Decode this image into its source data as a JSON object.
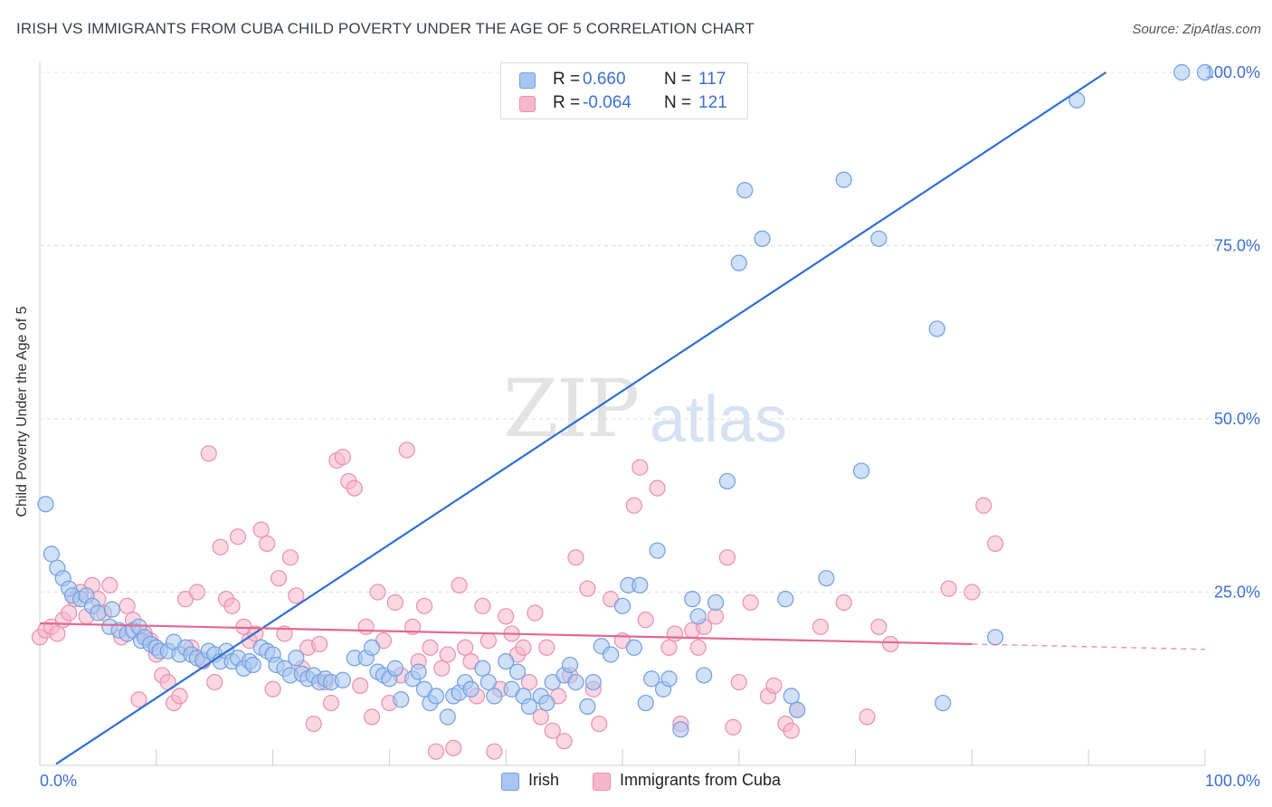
{
  "title": "IRISH VS IMMIGRANTS FROM CUBA CHILD POVERTY UNDER THE AGE OF 5 CORRELATION CHART",
  "source": "Source: ZipAtlas.com",
  "watermark": {
    "zip": "ZIP",
    "atlas": "atlas"
  },
  "legend": {
    "irish": {
      "r_label": "R =",
      "r_value": "0.660",
      "n_label": "N =",
      "n_value": "117"
    },
    "cuba": {
      "r_label": "R =",
      "r_value": "-0.064",
      "n_label": "N =",
      "n_value": "121"
    }
  },
  "bottom_legend": {
    "irish": "Irish",
    "cuba": "Immigrants from Cuba"
  },
  "colors": {
    "irish_fill": "#a9c6f0",
    "irish_stroke": "#6f9fe0",
    "irish_line": "#2e6fd3",
    "cuba_fill": "#f7b7cb",
    "cuba_stroke": "#ea8fae",
    "cuba_line": "#e46891",
    "axis_text": "#3b6fd0"
  },
  "chart_data": {
    "type": "scatter",
    "title": "IRISH VS IMMIGRANTS FROM CUBA CHILD POVERTY UNDER THE AGE OF 5 CORRELATION CHART",
    "xlabel": "",
    "ylabel": "Child Poverty Under the Age of 5",
    "xlim": [
      0,
      100
    ],
    "ylim": [
      0,
      100
    ],
    "x_tick_labels": [
      "0.0%",
      "100.0%"
    ],
    "y_tick_labels": [
      "25.0%",
      "50.0%",
      "75.0%",
      "100.0%"
    ],
    "y_ticks": [
      25,
      50,
      75,
      100
    ],
    "grid": true,
    "legend_position": "top-center",
    "series": [
      {
        "name": "Irish",
        "trend": {
          "x": [
            1.4,
            91.5
          ],
          "y": [
            0.2,
            100
          ]
        },
        "points": [
          [
            0.5,
            37.7
          ],
          [
            1,
            30.5
          ],
          [
            1.5,
            28.5
          ],
          [
            2,
            27
          ],
          [
            2.5,
            25.5
          ],
          [
            2.8,
            24.5
          ],
          [
            3.5,
            24
          ],
          [
            4,
            24.5
          ],
          [
            4.5,
            23
          ],
          [
            5,
            22
          ],
          [
            6,
            20
          ],
          [
            6.2,
            22.5
          ],
          [
            6.8,
            19.5
          ],
          [
            7.5,
            19
          ],
          [
            8,
            19.5
          ],
          [
            8.5,
            20
          ],
          [
            8.7,
            18
          ],
          [
            9,
            18.5
          ],
          [
            9.5,
            17.5
          ],
          [
            10,
            17
          ],
          [
            10.3,
            16.5
          ],
          [
            11,
            16.5
          ],
          [
            11.5,
            17.8
          ],
          [
            12,
            16
          ],
          [
            12.5,
            17
          ],
          [
            13,
            16
          ],
          [
            13.5,
            15.5
          ],
          [
            14,
            15.2
          ],
          [
            14.5,
            16.5
          ],
          [
            15,
            16
          ],
          [
            15.5,
            15
          ],
          [
            16,
            16.5
          ],
          [
            16.5,
            15
          ],
          [
            17,
            15.5
          ],
          [
            17.5,
            14
          ],
          [
            18,
            15
          ],
          [
            18.3,
            14.5
          ],
          [
            19,
            17
          ],
          [
            19.5,
            16.5
          ],
          [
            20,
            16
          ],
          [
            20.3,
            14.5
          ],
          [
            21,
            14
          ],
          [
            21.5,
            13
          ],
          [
            22,
            15.5
          ],
          [
            22.5,
            13.2
          ],
          [
            23,
            12.5
          ],
          [
            23.5,
            13
          ],
          [
            24,
            12
          ],
          [
            24.5,
            12.5
          ],
          [
            25,
            12
          ],
          [
            26,
            12.3
          ],
          [
            27,
            15.5
          ],
          [
            28,
            15.5
          ],
          [
            28.5,
            17
          ],
          [
            29,
            13.5
          ],
          [
            29.5,
            13
          ],
          [
            30,
            12.5
          ],
          [
            30.5,
            14
          ],
          [
            31,
            9.5
          ],
          [
            32,
            12.5
          ],
          [
            32.5,
            13.5
          ],
          [
            33,
            11
          ],
          [
            33.5,
            9
          ],
          [
            34,
            10
          ],
          [
            35,
            7
          ],
          [
            35.5,
            10
          ],
          [
            36,
            10.5
          ],
          [
            36.5,
            12
          ],
          [
            37,
            11
          ],
          [
            38,
            14
          ],
          [
            38.5,
            12
          ],
          [
            39,
            10
          ],
          [
            40,
            15
          ],
          [
            40.5,
            11
          ],
          [
            41,
            13.5
          ],
          [
            41.5,
            10
          ],
          [
            42,
            8.5
          ],
          [
            43,
            10
          ],
          [
            43.5,
            9
          ],
          [
            44,
            12
          ],
          [
            45,
            13
          ],
          [
            45.5,
            14.5
          ],
          [
            46,
            12
          ],
          [
            47,
            8.5
          ],
          [
            47.5,
            12
          ],
          [
            48.2,
            17.2
          ],
          [
            49,
            16
          ],
          [
            50,
            23
          ],
          [
            50.5,
            26
          ],
          [
            51,
            17
          ],
          [
            51.5,
            26
          ],
          [
            52,
            9
          ],
          [
            52.5,
            12.5
          ],
          [
            53,
            31
          ],
          [
            53.5,
            11
          ],
          [
            54,
            12.5
          ],
          [
            55,
            5.2
          ],
          [
            56,
            24
          ],
          [
            56.5,
            21.5
          ],
          [
            57,
            13
          ],
          [
            58,
            23.5
          ],
          [
            59,
            41
          ],
          [
            60,
            72.5
          ],
          [
            60.5,
            83
          ],
          [
            62,
            76
          ],
          [
            64,
            24
          ],
          [
            64.5,
            10
          ],
          [
            65,
            8
          ],
          [
            67.5,
            27
          ],
          [
            69,
            84.5
          ],
          [
            70.5,
            42.5
          ],
          [
            72,
            76
          ],
          [
            77,
            63
          ],
          [
            77.5,
            9
          ],
          [
            82,
            18.5
          ],
          [
            89,
            96
          ],
          [
            98,
            100
          ],
          [
            100,
            100
          ]
        ]
      },
      {
        "name": "Immigrants from Cuba",
        "trend": {
          "x": [
            0,
            80
          ],
          "y": [
            20.5,
            17.5
          ]
        },
        "points": [
          [
            0,
            18.5
          ],
          [
            0.5,
            19.5
          ],
          [
            1,
            20
          ],
          [
            1.5,
            19
          ],
          [
            2,
            21
          ],
          [
            2.5,
            22
          ],
          [
            3,
            24
          ],
          [
            3.5,
            25
          ],
          [
            4,
            21.5
          ],
          [
            4.5,
            26
          ],
          [
            5,
            24
          ],
          [
            5.5,
            22
          ],
          [
            6,
            26
          ],
          [
            7,
            18.5
          ],
          [
            7.5,
            23
          ],
          [
            8,
            21
          ],
          [
            8.5,
            9.5
          ],
          [
            9,
            19
          ],
          [
            9.5,
            18
          ],
          [
            10,
            16
          ],
          [
            10.5,
            13
          ],
          [
            11,
            12
          ],
          [
            11.5,
            9
          ],
          [
            12,
            10
          ],
          [
            12.5,
            24
          ],
          [
            13,
            17
          ],
          [
            13.5,
            25
          ],
          [
            14,
            15
          ],
          [
            14.5,
            45
          ],
          [
            15,
            12
          ],
          [
            15.5,
            31.5
          ],
          [
            16,
            24
          ],
          [
            16.5,
            23
          ],
          [
            17,
            33
          ],
          [
            17.5,
            20
          ],
          [
            18,
            18
          ],
          [
            18.5,
            19
          ],
          [
            19,
            34
          ],
          [
            19.5,
            32
          ],
          [
            20,
            11
          ],
          [
            20.5,
            27
          ],
          [
            21,
            19
          ],
          [
            21.5,
            30
          ],
          [
            22,
            24.5
          ],
          [
            22.5,
            14
          ],
          [
            23,
            17
          ],
          [
            23.5,
            6
          ],
          [
            24,
            17.5
          ],
          [
            24.5,
            12
          ],
          [
            25,
            9
          ],
          [
            25.5,
            44
          ],
          [
            26,
            44.5
          ],
          [
            26.5,
            41
          ],
          [
            27,
            40
          ],
          [
            27.5,
            11.5
          ],
          [
            28,
            20
          ],
          [
            28.5,
            7
          ],
          [
            29,
            25
          ],
          [
            29.5,
            18
          ],
          [
            30,
            9
          ],
          [
            30.5,
            23.5
          ],
          [
            31,
            13
          ],
          [
            31.5,
            45.5
          ],
          [
            32,
            20
          ],
          [
            32.5,
            15
          ],
          [
            33,
            23
          ],
          [
            33.5,
            17
          ],
          [
            34,
            2
          ],
          [
            34.5,
            14
          ],
          [
            35,
            16
          ],
          [
            35.5,
            2.5
          ],
          [
            36,
            26
          ],
          [
            36.5,
            17
          ],
          [
            37,
            15
          ],
          [
            37.5,
            10
          ],
          [
            38,
            23
          ],
          [
            38.5,
            18
          ],
          [
            39,
            2
          ],
          [
            39.5,
            11
          ],
          [
            40,
            21.5
          ],
          [
            40.5,
            19
          ],
          [
            41,
            16
          ],
          [
            41.5,
            17
          ],
          [
            42,
            12
          ],
          [
            42.5,
            22
          ],
          [
            43,
            7
          ],
          [
            43.5,
            17
          ],
          [
            44,
            5
          ],
          [
            44.5,
            10
          ],
          [
            45,
            3.5
          ],
          [
            45.5,
            13
          ],
          [
            46,
            30
          ],
          [
            47,
            25.5
          ],
          [
            47.5,
            11
          ],
          [
            48,
            6
          ],
          [
            49,
            24
          ],
          [
            50,
            18
          ],
          [
            51,
            37.5
          ],
          [
            51.5,
            43
          ],
          [
            52,
            21
          ],
          [
            53,
            40
          ],
          [
            54,
            17
          ],
          [
            54.5,
            19
          ],
          [
            55,
            6
          ],
          [
            56,
            19.5
          ],
          [
            56.5,
            17
          ],
          [
            57,
            20
          ],
          [
            58,
            21.5
          ],
          [
            59,
            30
          ],
          [
            59.5,
            5.5
          ],
          [
            60,
            12
          ],
          [
            61,
            23.5
          ],
          [
            62.5,
            10
          ],
          [
            63,
            11.5
          ],
          [
            64,
            6
          ],
          [
            64.5,
            5
          ],
          [
            65,
            8
          ],
          [
            67,
            20
          ],
          [
            69,
            23.5
          ],
          [
            71,
            7
          ],
          [
            72,
            20
          ],
          [
            73,
            17.5
          ],
          [
            78,
            25.5
          ],
          [
            80,
            25
          ],
          [
            81,
            37.5
          ],
          [
            82,
            32
          ]
        ]
      }
    ]
  }
}
